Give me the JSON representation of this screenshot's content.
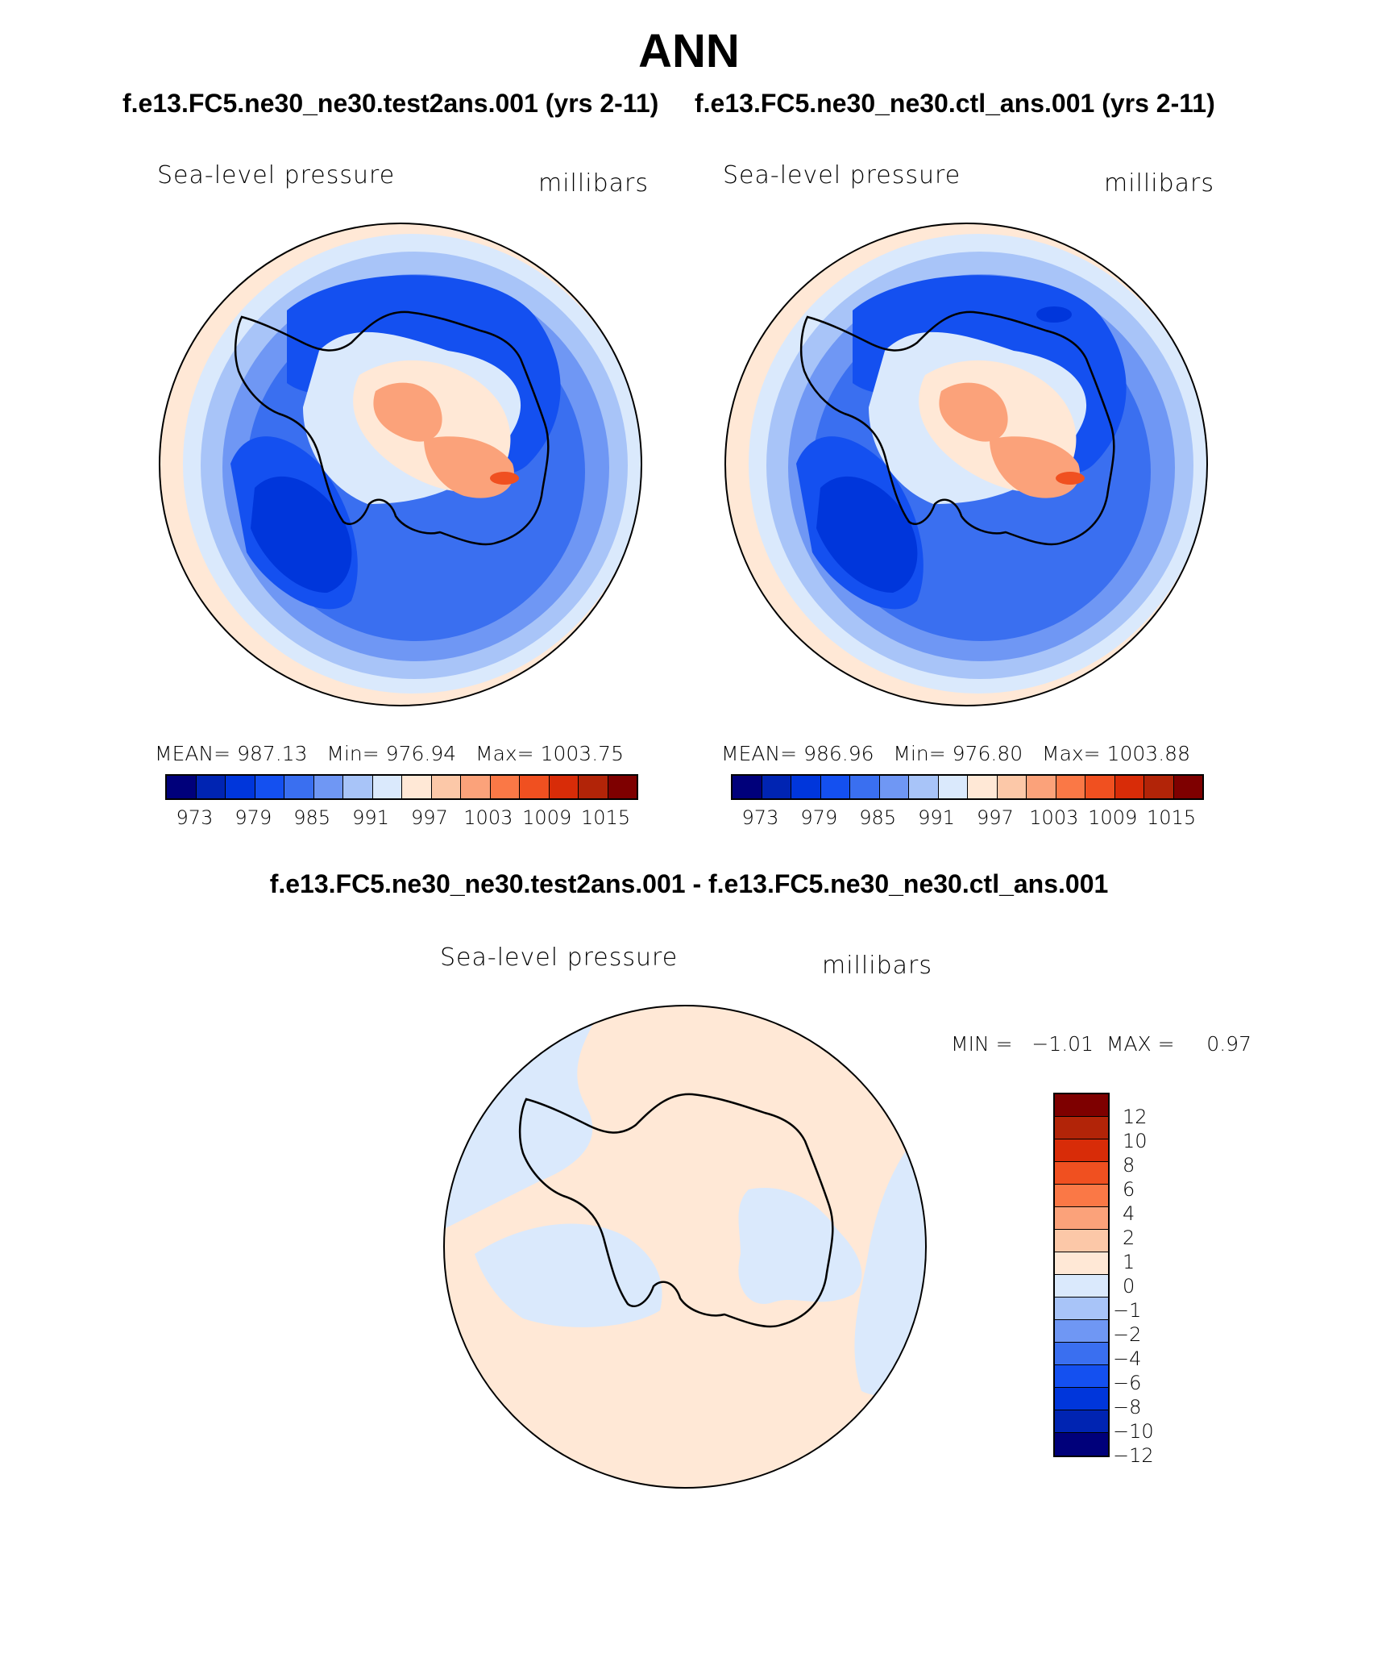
{
  "figure_title": "ANN",
  "panel_left": {
    "case": "f.e13.FC5.ne30_ne30.test2ans.001 (yrs 2-11)",
    "variable": "Sea-level pressure",
    "units": "millibars",
    "stats": {
      "mean": "987.13",
      "min": "976.94",
      "max": "1003.75"
    }
  },
  "panel_right": {
    "case": "f.e13.FC5.ne30_ne30.ctl_ans.001 (yrs 2-11)",
    "variable": "Sea-level pressure",
    "units": "millibars",
    "stats": {
      "mean": "986.96",
      "min": "976.80",
      "max": "1003.88"
    }
  },
  "panel_diff": {
    "title": "f.e13.FC5.ne30_ne30.test2ans.001 - f.e13.FC5.ne30_ne30.ctl_ans.001",
    "variable": "Sea-level pressure",
    "units": "millibars",
    "min_max_text": "MIN =   −1.01  MAX =     0.97"
  },
  "labels": {
    "mean": "MEAN=",
    "min": "Min=",
    "max": "Max="
  },
  "colorbar_main": {
    "colors": [
      "#00007a",
      "#0024b2",
      "#0036db",
      "#1450f0",
      "#3a6ff0",
      "#6f97f4",
      "#a8c4f8",
      "#dae9fc",
      "#ffe8d6",
      "#fcc8a8",
      "#fba27a",
      "#fa7846",
      "#f05020",
      "#d82c08",
      "#b22408",
      "#7e0000"
    ],
    "tick_labels": [
      "973",
      "979",
      "985",
      "991",
      "997",
      "1003",
      "1009",
      "1015"
    ]
  },
  "colorbar_diff": {
    "colors": [
      "#7e0000",
      "#b22408",
      "#d82c08",
      "#f05020",
      "#fa7846",
      "#fba27a",
      "#fcc8a8",
      "#ffe8d6",
      "#dae9fc",
      "#a8c4f8",
      "#6f97f4",
      "#3a6ff0",
      "#1450f0",
      "#0036db",
      "#0024b2",
      "#00007a"
    ],
    "tick_labels": [
      "12",
      "10",
      "8",
      "6",
      "4",
      "2",
      "1",
      "0",
      "−1",
      "−2",
      "−4",
      "−6",
      "−8",
      "−10",
      "−12"
    ]
  },
  "chart_data": [
    {
      "type": "heatmap",
      "projection": "south polar stereographic",
      "title": "Sea-level pressure",
      "units": "millibars",
      "case": "f.e13.FC5.ne30_ne30.test2ans.001 (yrs 2-11)",
      "mean": 987.13,
      "min": 976.94,
      "max": 1003.75,
      "contour_levels": [
        973,
        976,
        979,
        982,
        985,
        988,
        991,
        994,
        997,
        1000,
        1003,
        1006,
        1009,
        1012,
        1015
      ]
    },
    {
      "type": "heatmap",
      "projection": "south polar stereographic",
      "title": "Sea-level pressure",
      "units": "millibars",
      "case": "f.e13.FC5.ne30_ne30.ctl_ans.001 (yrs 2-11)",
      "mean": 986.96,
      "min": 976.8,
      "max": 1003.88,
      "contour_levels": [
        973,
        976,
        979,
        982,
        985,
        988,
        991,
        994,
        997,
        1000,
        1003,
        1006,
        1009,
        1012,
        1015
      ]
    },
    {
      "type": "heatmap",
      "projection": "south polar stereographic",
      "title": "Sea-level pressure",
      "units": "millibars",
      "case": "f.e13.FC5.ne30_ne30.test2ans.001 - f.e13.FC5.ne30_ne30.ctl_ans.001",
      "min": -1.01,
      "max": 0.97,
      "contour_levels": [
        -12,
        -10,
        -8,
        -6,
        -4,
        -2,
        -1,
        0,
        1,
        2,
        4,
        6,
        8,
        10,
        12
      ]
    }
  ]
}
